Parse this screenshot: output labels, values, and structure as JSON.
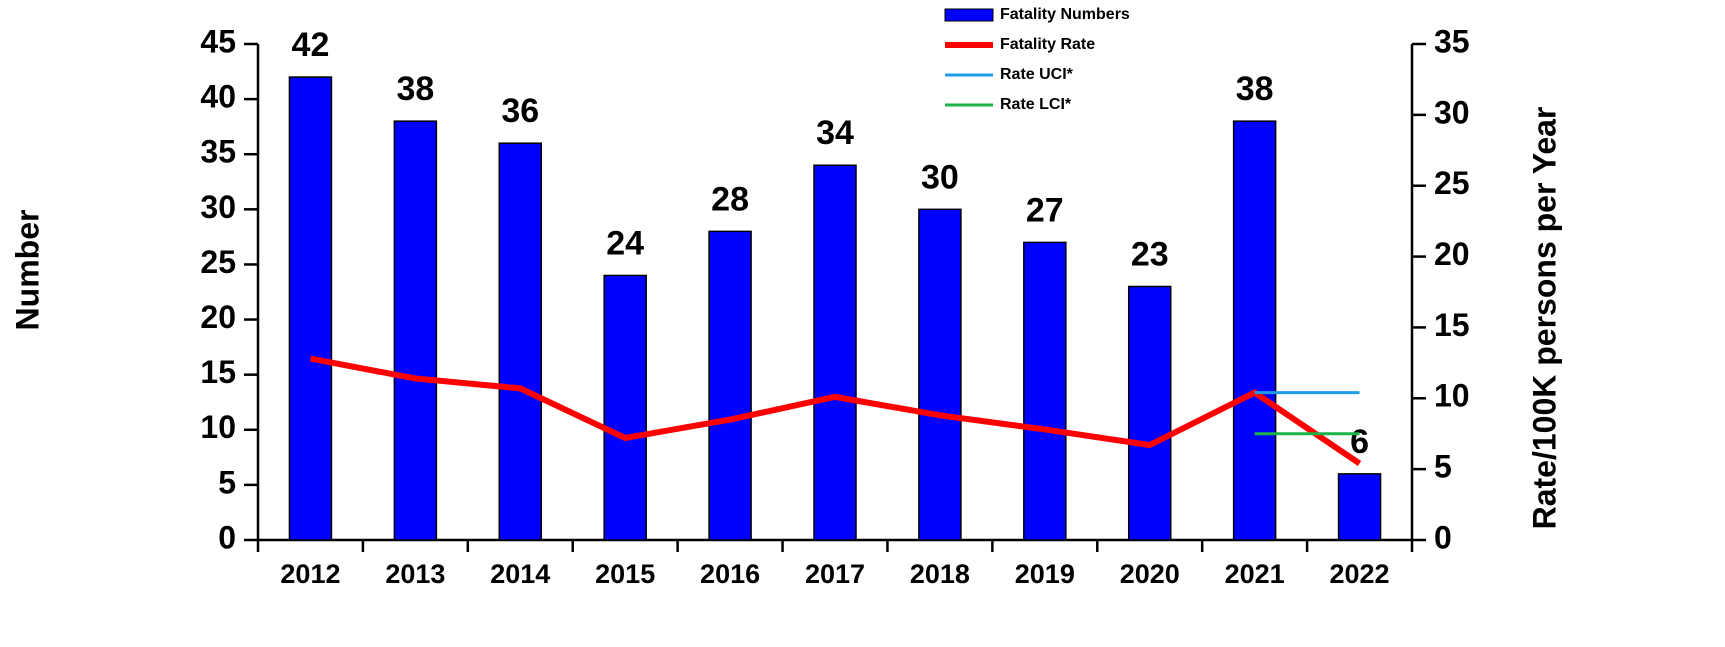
{
  "chart_data": {
    "type": "bar",
    "y_label": "Number",
    "y2_label": "Rate/100K persons per Year",
    "categories": [
      "2012",
      "2013",
      "2014",
      "2015",
      "2016",
      "2017",
      "2018",
      "2019",
      "2020",
      "2021",
      "2022"
    ],
    "series": [
      {
        "name": "Fatality Numbers",
        "type": "bar",
        "color": "#0000ff",
        "values": [
          42,
          38,
          36,
          24,
          28,
          34,
          30,
          27,
          23,
          38,
          6
        ]
      },
      {
        "name": "Fatality Rate",
        "type": "line",
        "axis": "y2",
        "color": "#ff0000",
        "values": [
          12.8,
          11.4,
          10.7,
          7.2,
          8.5,
          10.1,
          8.8,
          7.8,
          6.7,
          10.4,
          5.4
        ]
      },
      {
        "name": "Rate UCI*",
        "type": "line",
        "axis": "y2",
        "color": "#1e9be6",
        "values": [
          null,
          null,
          null,
          null,
          null,
          null,
          null,
          null,
          null,
          10.4,
          10.4
        ]
      },
      {
        "name": "Rate LCI*",
        "type": "line",
        "axis": "y2",
        "color": "#1db34a",
        "values": [
          null,
          null,
          null,
          null,
          null,
          null,
          null,
          null,
          null,
          7.5,
          7.5
        ]
      }
    ],
    "ylim": [
      0,
      45
    ],
    "yticks": [
      0,
      5,
      10,
      15,
      20,
      25,
      30,
      35,
      40,
      45
    ],
    "y2lim": [
      0,
      35
    ],
    "y2ticks": [
      0,
      5,
      10,
      15,
      20,
      25,
      30,
      35
    ],
    "legend": "top-right"
  }
}
